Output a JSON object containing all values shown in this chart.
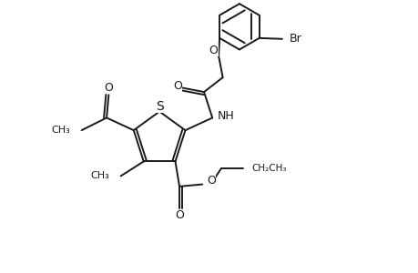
{
  "background_color": "#ffffff",
  "line_color": "#1a1a1a",
  "line_width": 1.4,
  "font_size": 9,
  "figsize": [
    4.6,
    3.0
  ],
  "dpi": 100,
  "xlim": [
    0,
    10
  ],
  "ylim": [
    0,
    6.5
  ]
}
